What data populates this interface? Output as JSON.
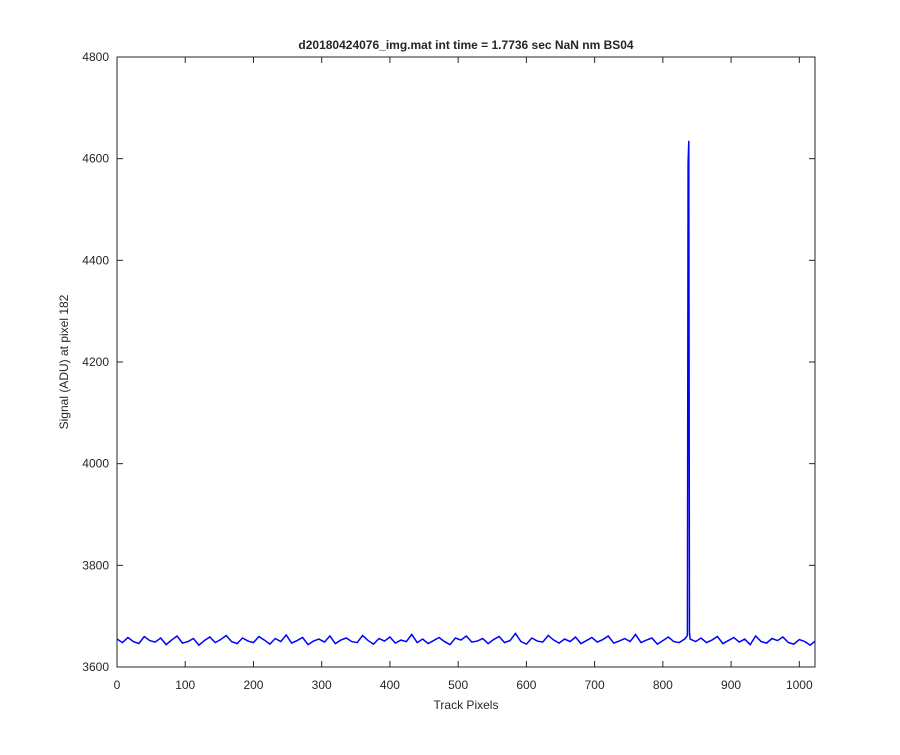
{
  "chart_data": {
    "type": "line",
    "title": "d20180424076_img.mat int time = 1.7736 sec  NaN nm BS04",
    "x_label": "Track Pixels",
    "y_label": "Signal (ADU) at pixel 182",
    "xlim": [
      0,
      1023
    ],
    "ylim": [
      3600,
      4800
    ],
    "xticks": [
      0,
      100,
      200,
      300,
      400,
      500,
      600,
      700,
      800,
      900,
      1000
    ],
    "yticks": [
      3600,
      3800,
      4000,
      4200,
      4400,
      4600,
      4800
    ],
    "grid": false,
    "series": [
      {
        "name": "signal",
        "color": "#0000ff",
        "x": [
          0,
          8,
          16,
          24,
          32,
          40,
          48,
          56,
          64,
          72,
          80,
          88,
          96,
          104,
          112,
          120,
          128,
          136,
          144,
          152,
          160,
          168,
          176,
          184,
          192,
          200,
          208,
          216,
          224,
          232,
          240,
          248,
          256,
          264,
          272,
          280,
          288,
          296,
          304,
          312,
          320,
          328,
          336,
          344,
          352,
          360,
          368,
          376,
          384,
          392,
          400,
          408,
          416,
          424,
          432,
          440,
          448,
          456,
          464,
          472,
          480,
          488,
          496,
          504,
          512,
          520,
          528,
          536,
          544,
          552,
          560,
          568,
          576,
          584,
          592,
          600,
          608,
          616,
          624,
          632,
          640,
          648,
          656,
          664,
          672,
          680,
          688,
          696,
          704,
          712,
          720,
          728,
          736,
          744,
          752,
          760,
          768,
          776,
          784,
          792,
          800,
          808,
          816,
          824,
          832,
          836,
          837,
          838,
          839,
          840,
          848,
          856,
          864,
          872,
          880,
          888,
          896,
          904,
          912,
          920,
          928,
          936,
          944,
          952,
          960,
          968,
          976,
          984,
          992,
          1000,
          1008,
          1016,
          1023
        ],
        "values": [
          3655,
          3648,
          3658,
          3650,
          3646,
          3660,
          3652,
          3649,
          3657,
          3644,
          3653,
          3661,
          3647,
          3650,
          3656,
          3643,
          3652,
          3659,
          3648,
          3654,
          3662,
          3650,
          3646,
          3657,
          3651,
          3648,
          3660,
          3653,
          3645,
          3656,
          3650,
          3663,
          3647,
          3652,
          3658,
          3644,
          3651,
          3655,
          3649,
          3661,
          3646,
          3653,
          3657,
          3650,
          3648,
          3662,
          3652,
          3645,
          3656,
          3651,
          3659,
          3647,
          3653,
          3650,
          3664,
          3648,
          3655,
          3646,
          3652,
          3658,
          3650,
          3644,
          3657,
          3653,
          3661,
          3649,
          3651,
          3656,
          3646,
          3654,
          3660,
          3648,
          3652,
          3666,
          3650,
          3645,
          3657,
          3651,
          3649,
          3662,
          3653,
          3647,
          3655,
          3650,
          3659,
          3646,
          3652,
          3658,
          3649,
          3654,
          3661,
          3647,
          3651,
          3656,
          3650,
          3664,
          3648,
          3653,
          3657,
          3645,
          3652,
          3659,
          3650,
          3648,
          3655,
          3662,
          4590,
          4635,
          3668,
          3655,
          3650,
          3657,
          3648,
          3653,
          3660,
          3646,
          3652,
          3658,
          3649,
          3655,
          3644,
          3661,
          3650,
          3647,
          3656,
          3652,
          3659,
          3648,
          3645,
          3654,
          3650,
          3643,
          3651
        ]
      }
    ]
  }
}
